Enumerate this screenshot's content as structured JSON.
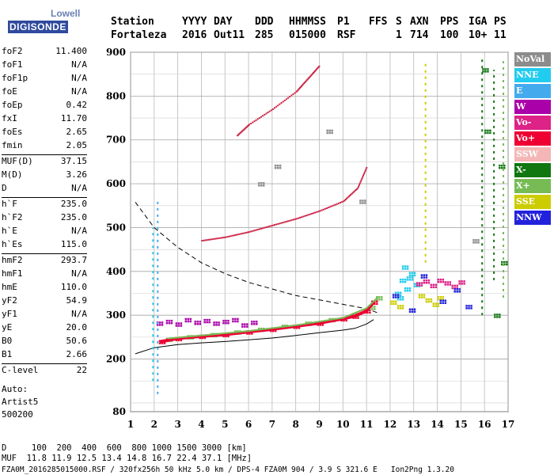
{
  "brand": {
    "top": "Lowell",
    "bottom": "DIGISONDE"
  },
  "header": {
    "labels": [
      "Station",
      "YYYY",
      "DAY",
      "DDD",
      "HHMMSS",
      "P1",
      "FFS",
      "S",
      "AXN",
      "PPS",
      "IGA",
      "PS"
    ],
    "values": [
      "Fortaleza",
      "2016",
      "Out11",
      "285",
      "015000",
      "RSF",
      "1",
      "714",
      "100",
      "10+",
      "11"
    ]
  },
  "params": [
    {
      "k": "foF2",
      "v": "11.400"
    },
    {
      "k": "foF1",
      "v": "N/A"
    },
    {
      "k": "foF1p",
      "v": "N/A"
    },
    {
      "k": "foE",
      "v": "N/A"
    },
    {
      "k": "foEp",
      "v": "0.42"
    },
    {
      "k": "fxI",
      "v": "11.70"
    },
    {
      "k": "foEs",
      "v": "2.65"
    },
    {
      "k": "fmin",
      "v": "2.05"
    },
    {
      "k": "MUF(D)",
      "v": "37.15"
    },
    {
      "k": "M(D)",
      "v": "3.26"
    },
    {
      "k": "D",
      "v": "N/A"
    },
    {
      "k": "h`F",
      "v": "235.0"
    },
    {
      "k": "h`F2",
      "v": "235.0"
    },
    {
      "k": "h`E",
      "v": "N/A"
    },
    {
      "k": "h`Es",
      "v": "115.0"
    },
    {
      "k": "hmF2",
      "v": "293.7"
    },
    {
      "k": "hmF1",
      "v": "N/A"
    },
    {
      "k": "hmE",
      "v": "110.0"
    },
    {
      "k": "yF2",
      "v": "54.9"
    },
    {
      "k": "yF1",
      "v": "N/A"
    },
    {
      "k": "yE",
      "v": "20.0"
    },
    {
      "k": "B0",
      "v": "50.6"
    },
    {
      "k": "B1",
      "v": "2.66"
    },
    {
      "k": "C-level",
      "v": "22"
    }
  ],
  "auto": {
    "line1": "Auto:",
    "line2": "Artist5",
    "line3": "500200"
  },
  "legend": [
    {
      "label": "NoVal",
      "color": "#8c8c8c"
    },
    {
      "label": "NNE",
      "color": "#22ccee"
    },
    {
      "label": "E",
      "color": "#44aaee"
    },
    {
      "label": "W",
      "color": "#aa00aa"
    },
    {
      "label": "Vo-",
      "color": "#dd2288"
    },
    {
      "label": "Vo+",
      "color": "#ee0033"
    },
    {
      "label": "SSW",
      "color": "#f4b6b6"
    },
    {
      "label": "X-",
      "color": "#117711"
    },
    {
      "label": "X+",
      "color": "#77bb55"
    },
    {
      "label": "SSE",
      "color": "#cccc00"
    },
    {
      "label": "NNW",
      "color": "#2222dd"
    }
  ],
  "footer": {
    "line1": "D     100  200  400  600  800 1000 1500 3000 [km]",
    "line2": "MUF  11.8 11.9 12.5 13.4 14.8 16.7 22.4 37.1 [MHz]",
    "line3": "FZA0M_2016285015000.RSF / 320fx256h 50 kHz 5.0 km / DPS-4 FZA0M 904 / 3.9 S 321.6 E   Ion2Png 1.3.20"
  },
  "chart_data": {
    "type": "scatter",
    "xlim": [
      1,
      17
    ],
    "ylim": [
      80,
      900
    ],
    "x_ticks": [
      1,
      2,
      3,
      4,
      5,
      6,
      7,
      8,
      9,
      10,
      11,
      12,
      13,
      14,
      15,
      16,
      17
    ],
    "y_ticks": [
      80,
      200,
      300,
      400,
      500,
      600,
      700,
      800,
      900
    ],
    "grid": true,
    "series": [
      {
        "name": "Vo+",
        "color": "#ee0033",
        "x": [
          2.3,
          3,
          4,
          5,
          6,
          7,
          8,
          9,
          10,
          10.5,
          11,
          11.3
        ],
        "y": [
          240,
          247,
          252,
          256,
          262,
          268,
          275,
          282,
          292,
          298,
          310,
          330
        ]
      },
      {
        "name": "X+",
        "color": "#77bb55",
        "x": [
          2.6,
          3.5,
          4.5,
          5.5,
          6.5,
          7.5,
          8.5,
          9.5,
          10.5,
          11.2,
          11.5
        ],
        "y": [
          245,
          251,
          256,
          262,
          268,
          275,
          282,
          290,
          302,
          318,
          340
        ]
      },
      {
        "name": "W",
        "color": "#aa00aa",
        "x": [
          2.2,
          2.6,
          3.0,
          3.4,
          3.8,
          4.2,
          4.6,
          5.0,
          5.4,
          5.8,
          6.2
        ],
        "y": [
          282,
          286,
          280,
          290,
          284,
          288,
          282,
          286,
          290,
          278,
          284
        ]
      },
      {
        "name": "NNE",
        "color": "#22ccee",
        "x": [
          12.3,
          12.5,
          12.7,
          12.9,
          13.1,
          12.4,
          12.6,
          12.8
        ],
        "y": [
          350,
          380,
          360,
          395,
          370,
          340,
          410,
          385
        ]
      },
      {
        "name": "SSE",
        "color": "#cccc00",
        "x": [
          12.1,
          12.4,
          13.3,
          13.6,
          13.9,
          14.1
        ],
        "y": [
          330,
          320,
          345,
          335,
          325,
          340
        ]
      },
      {
        "name": "Vo-",
        "color": "#dd2288",
        "x": [
          13.2,
          13.5,
          13.8,
          14.1,
          14.4,
          14.7,
          15.0
        ],
        "y": [
          372,
          378,
          368,
          380,
          374,
          366,
          376
        ]
      },
      {
        "name": "NNW",
        "color": "#2222dd",
        "x": [
          12.2,
          12.9,
          13.4,
          14.2,
          14.8,
          15.3
        ],
        "y": [
          345,
          312,
          390,
          332,
          358,
          320
        ]
      },
      {
        "name": "X-",
        "color": "#117711",
        "x": [
          16.0,
          16.1,
          16.5,
          16.7,
          16.8
        ],
        "y": [
          860,
          720,
          300,
          640,
          420
        ]
      },
      {
        "name": "NoVal",
        "color": "#8c8c8c",
        "x": [
          6.5,
          7.2,
          9.4,
          10.8,
          15.6
        ],
        "y": [
          600,
          640,
          720,
          560,
          470
        ]
      }
    ],
    "echo_traces": [
      {
        "name": "2-hop",
        "color": "#cc2244",
        "x": [
          4.0,
          5,
          6,
          7,
          8,
          9,
          10,
          10.6,
          11
        ],
        "y": [
          470,
          478,
          490,
          505,
          520,
          538,
          560,
          590,
          640
        ]
      },
      {
        "name": "3-hop",
        "color": "#cc2244",
        "x": [
          5.5,
          6,
          7,
          8,
          8.5,
          9
        ],
        "y": [
          710,
          735,
          770,
          810,
          840,
          870
        ]
      }
    ],
    "profile_curve": {
      "x": [
        1.2,
        2,
        3,
        4,
        5,
        6,
        7,
        8,
        9,
        10,
        10.5,
        11,
        11.3
      ],
      "y": [
        212,
        226,
        233,
        237,
        240,
        244,
        248,
        254,
        260,
        266,
        270,
        280,
        290
      ]
    },
    "dashed_curve": {
      "x": [
        1.2,
        2,
        3,
        4,
        5,
        6,
        7,
        8,
        9,
        10,
        11,
        11.5
      ],
      "y": [
        558,
        500,
        455,
        420,
        395,
        375,
        360,
        345,
        335,
        325,
        315,
        305
      ]
    }
  }
}
